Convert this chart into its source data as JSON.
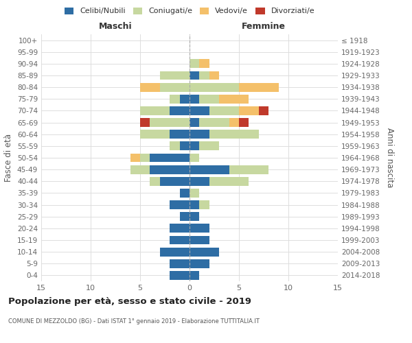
{
  "age_groups": [
    "0-4",
    "5-9",
    "10-14",
    "15-19",
    "20-24",
    "25-29",
    "30-34",
    "35-39",
    "40-44",
    "45-49",
    "50-54",
    "55-59",
    "60-64",
    "65-69",
    "70-74",
    "75-79",
    "80-84",
    "85-89",
    "90-94",
    "95-99",
    "100+"
  ],
  "birth_years": [
    "2014-2018",
    "2009-2013",
    "2004-2008",
    "1999-2003",
    "1994-1998",
    "1989-1993",
    "1984-1988",
    "1979-1983",
    "1974-1978",
    "1969-1973",
    "1964-1968",
    "1959-1963",
    "1954-1958",
    "1949-1953",
    "1944-1948",
    "1939-1943",
    "1934-1938",
    "1929-1933",
    "1924-1928",
    "1919-1923",
    "≤ 1918"
  ],
  "males": {
    "celibi": [
      2,
      2,
      3,
      2,
      2,
      1,
      2,
      1,
      3,
      4,
      4,
      1,
      2,
      0,
      2,
      1,
      0,
      0,
      0,
      0,
      0
    ],
    "coniugati": [
      0,
      0,
      0,
      0,
      0,
      0,
      0,
      0,
      1,
      2,
      1,
      1,
      3,
      4,
      3,
      1,
      3,
      3,
      0,
      0,
      0
    ],
    "vedovi": [
      0,
      0,
      0,
      0,
      0,
      0,
      0,
      0,
      0,
      0,
      1,
      0,
      0,
      0,
      0,
      0,
      2,
      0,
      0,
      0,
      0
    ],
    "divorziati": [
      0,
      0,
      0,
      0,
      0,
      0,
      0,
      0,
      0,
      0,
      0,
      0,
      0,
      1,
      0,
      0,
      0,
      0,
      0,
      0,
      0
    ]
  },
  "females": {
    "nubili": [
      1,
      2,
      3,
      2,
      2,
      1,
      1,
      0,
      2,
      4,
      0,
      1,
      2,
      1,
      2,
      1,
      0,
      1,
      0,
      0,
      0
    ],
    "coniugate": [
      0,
      0,
      0,
      0,
      0,
      0,
      1,
      1,
      4,
      4,
      1,
      2,
      5,
      3,
      3,
      2,
      5,
      1,
      1,
      0,
      0
    ],
    "vedove": [
      0,
      0,
      0,
      0,
      0,
      0,
      0,
      0,
      0,
      0,
      0,
      0,
      0,
      1,
      2,
      3,
      4,
      1,
      1,
      0,
      0
    ],
    "divorziate": [
      0,
      0,
      0,
      0,
      0,
      0,
      0,
      0,
      0,
      0,
      0,
      0,
      0,
      1,
      1,
      0,
      0,
      0,
      0,
      0,
      0
    ]
  },
  "colors": {
    "celibi": "#2e6da4",
    "coniugati": "#c7d8a0",
    "vedovi": "#f4c06a",
    "divorziati": "#c0392b"
  },
  "legend_labels": [
    "Celibi/Nubili",
    "Coniugati/e",
    "Vedovi/e",
    "Divorziati/e"
  ],
  "title": "Popolazione per età, sesso e stato civile - 2019",
  "subtitle": "COMUNE DI MEZZOLDO (BG) - Dati ISTAT 1° gennaio 2019 - Elaborazione TUTTITALIA.IT",
  "xlabel_left": "Maschi",
  "xlabel_right": "Femmine",
  "ylabel_left": "Fasce di età",
  "ylabel_right": "Anni di nascita",
  "xlim": 15,
  "background_color": "#ffffff",
  "grid_color": "#dddddd"
}
